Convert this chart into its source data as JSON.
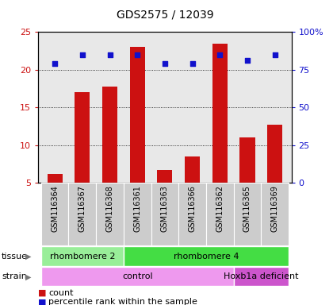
{
  "title": "GDS2575 / 12039",
  "samples": [
    "GSM116364",
    "GSM116367",
    "GSM116368",
    "GSM116361",
    "GSM116363",
    "GSM116366",
    "GSM116362",
    "GSM116365",
    "GSM116369"
  ],
  "counts": [
    6.2,
    17.0,
    17.8,
    23.0,
    6.7,
    8.5,
    23.5,
    11.0,
    12.7
  ],
  "percentiles": [
    79,
    85,
    85,
    85,
    79,
    79,
    85,
    81,
    85
  ],
  "ylim_left": [
    5,
    25
  ],
  "ylim_right": [
    0,
    100
  ],
  "yticks_left": [
    5,
    10,
    15,
    20,
    25
  ],
  "yticks_right": [
    0,
    25,
    50,
    75,
    100
  ],
  "ytick_labels_right": [
    "0",
    "25",
    "50",
    "75",
    "100%"
  ],
  "bar_color": "#cc1111",
  "scatter_color": "#1111cc",
  "bar_width": 0.55,
  "tissue_groups": [
    {
      "label": "rhombomere 2",
      "start": 0,
      "end": 2,
      "color": "#99ee99"
    },
    {
      "label": "rhombomere 4",
      "start": 3,
      "end": 8,
      "color": "#44dd44"
    }
  ],
  "strain_groups": [
    {
      "label": "control",
      "start": 0,
      "end": 6,
      "color": "#ee99ee"
    },
    {
      "label": "Hoxb1a deficient",
      "start": 7,
      "end": 8,
      "color": "#cc55cc"
    }
  ],
  "legend_count_label": "count",
  "legend_pct_label": "percentile rank within the sample",
  "tissue_label": "tissue",
  "strain_label": "strain",
  "plot_bg_color": "#e8e8e8",
  "fig_bg_color": "#ffffff",
  "label_bg_color": "#cccccc",
  "title_fontsize": 10,
  "axis_fontsize": 8,
  "label_fontsize": 7,
  "legend_fontsize": 8
}
